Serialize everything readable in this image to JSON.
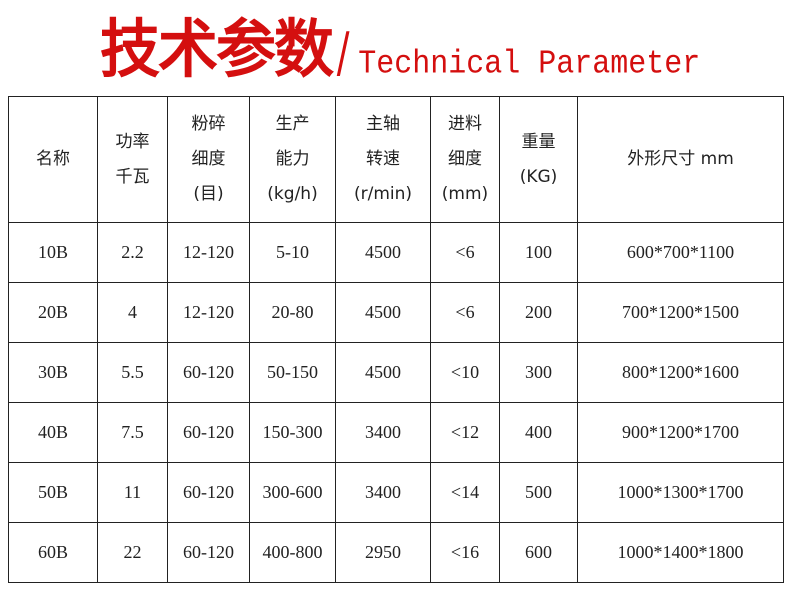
{
  "title": {
    "cn": "技术参数",
    "separator": "/",
    "en": "Technical Parameter",
    "color": "#d40f0f"
  },
  "table": {
    "headers": [
      [
        "名称"
      ],
      [
        "功率",
        "千瓦"
      ],
      [
        "粉碎",
        "细度",
        "(目)"
      ],
      [
        "生产",
        "能力",
        "(kg/h)"
      ],
      [
        "主轴",
        "转速",
        "(r/min)"
      ],
      [
        "进料",
        "细度",
        "(mm)"
      ],
      [
        "重量",
        "(KG)"
      ],
      [
        "外形尺寸 mm"
      ]
    ],
    "rows": [
      [
        "10B",
        "2.2",
        "12-120",
        "5-10",
        "4500",
        "<6",
        "100",
        "600*700*1100"
      ],
      [
        "20B",
        "4",
        "12-120",
        "20-80",
        "4500",
        "<6",
        "200",
        "700*1200*1500"
      ],
      [
        "30B",
        "5.5",
        "60-120",
        "50-150",
        "4500",
        "<10",
        "300",
        "800*1200*1600"
      ],
      [
        "40B",
        "7.5",
        "60-120",
        "150-300",
        "3400",
        "<12",
        "400",
        "900*1200*1700"
      ],
      [
        "50B",
        "11",
        "60-120",
        "300-600",
        "3400",
        "<14",
        "500",
        "1000*1300*1700"
      ],
      [
        "60B",
        "22",
        "60-120",
        "400-800",
        "2950",
        "<16",
        "600",
        "1000*1400*1800"
      ]
    ]
  }
}
